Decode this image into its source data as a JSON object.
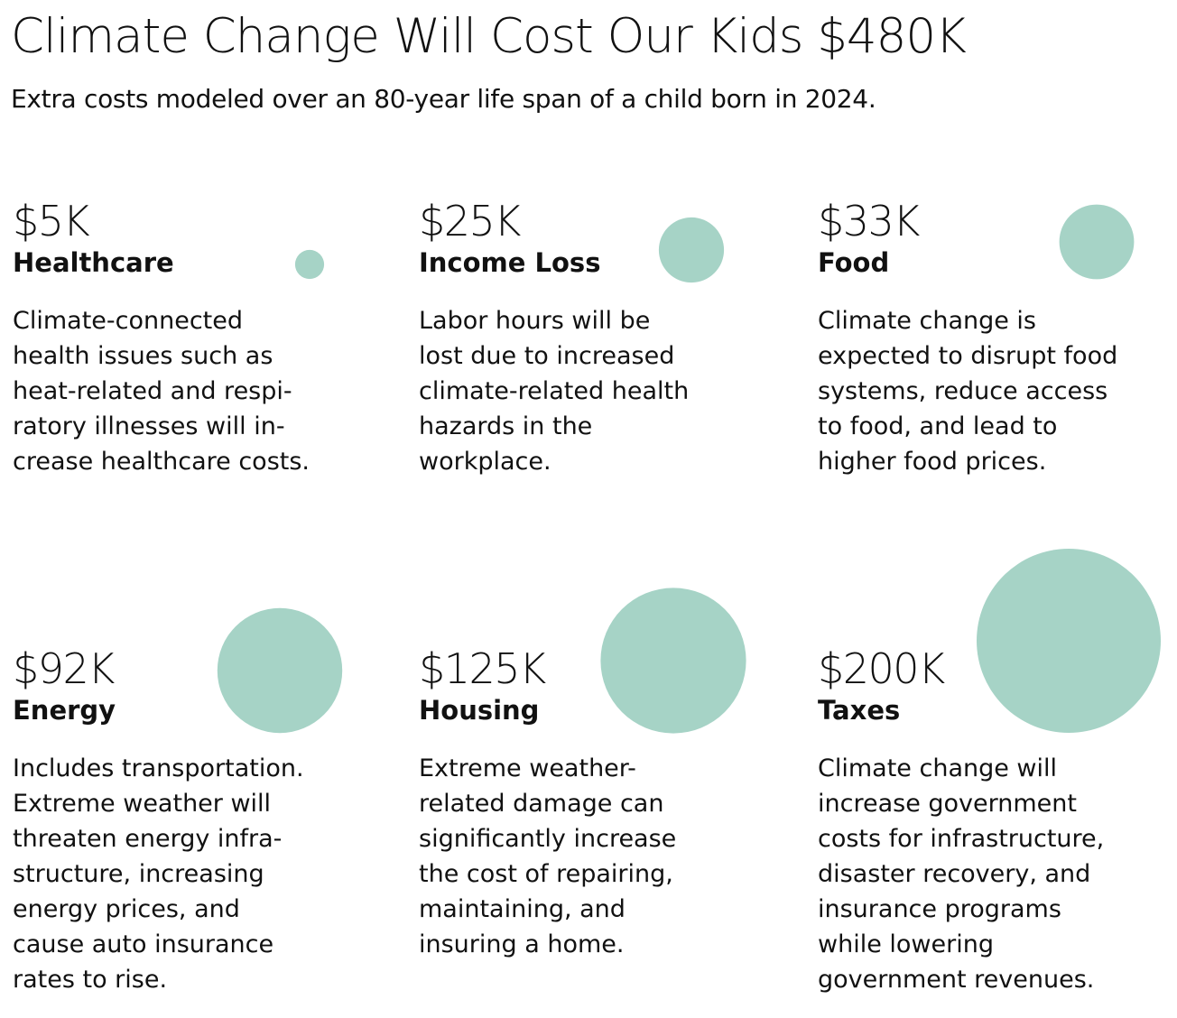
{
  "header": {
    "title": "Climate Change Will Cost Our Kids $480K",
    "subtitle": "Extra costs modeled over an 80-year life span of a child born in 2024."
  },
  "colors": {
    "bubble": "#a6d3c6",
    "text": "#111111",
    "background": "#ffffff"
  },
  "chart_data": {
    "type": "bubble",
    "title": "Climate Change Will Cost Our Kids $480K",
    "subtitle": "Extra costs modeled over an 80-year life span of a child born in 2024.",
    "units": "USD (thousands)",
    "total": 480,
    "categories": [
      "Healthcare",
      "Income Loss",
      "Food",
      "Energy",
      "Housing",
      "Taxes"
    ],
    "values": [
      5,
      25,
      33,
      92,
      125,
      200
    ],
    "items": [
      {
        "amount_label": "$5K",
        "value": 5,
        "category": "Healthcare",
        "description_lines": [
          "Climate-connected",
          "health issues such as",
          "heat-related and respi-",
          "ratory illnesses will in-",
          "crease healthcare costs."
        ]
      },
      {
        "amount_label": "$25K",
        "value": 25,
        "category": "Income Loss",
        "description_lines": [
          "Labor hours will be",
          "lost due to increased",
          "climate-related health",
          "hazards in the",
          "workplace."
        ]
      },
      {
        "amount_label": "$33K",
        "value": 33,
        "category": "Food",
        "description_lines": [
          "Climate change is",
          "expected to disrupt food",
          "systems, reduce access",
          "to food, and lead to",
          "higher food prices."
        ]
      },
      {
        "amount_label": "$92K",
        "value": 92,
        "category": "Energy",
        "description_lines": [
          "Includes transportation.",
          "Extreme weather will",
          "threaten energy infra-",
          "structure, increasing",
          "energy prices, and",
          "cause auto insurance",
          "rates to rise."
        ]
      },
      {
        "amount_label": "$125K",
        "value": 125,
        "category": "Housing",
        "description_lines": [
          "Extreme weather-",
          "related damage can",
          "significantly increase",
          "the cost of repairing,",
          "maintaining, and",
          "insuring a home."
        ]
      },
      {
        "amount_label": "$200K",
        "value": 200,
        "category": "Taxes",
        "description_lines": [
          "Climate change will",
          "increase government",
          "costs for infrastructure,",
          "disaster recovery, and",
          "insurance programs",
          "while lowering",
          "government revenues."
        ]
      }
    ]
  }
}
